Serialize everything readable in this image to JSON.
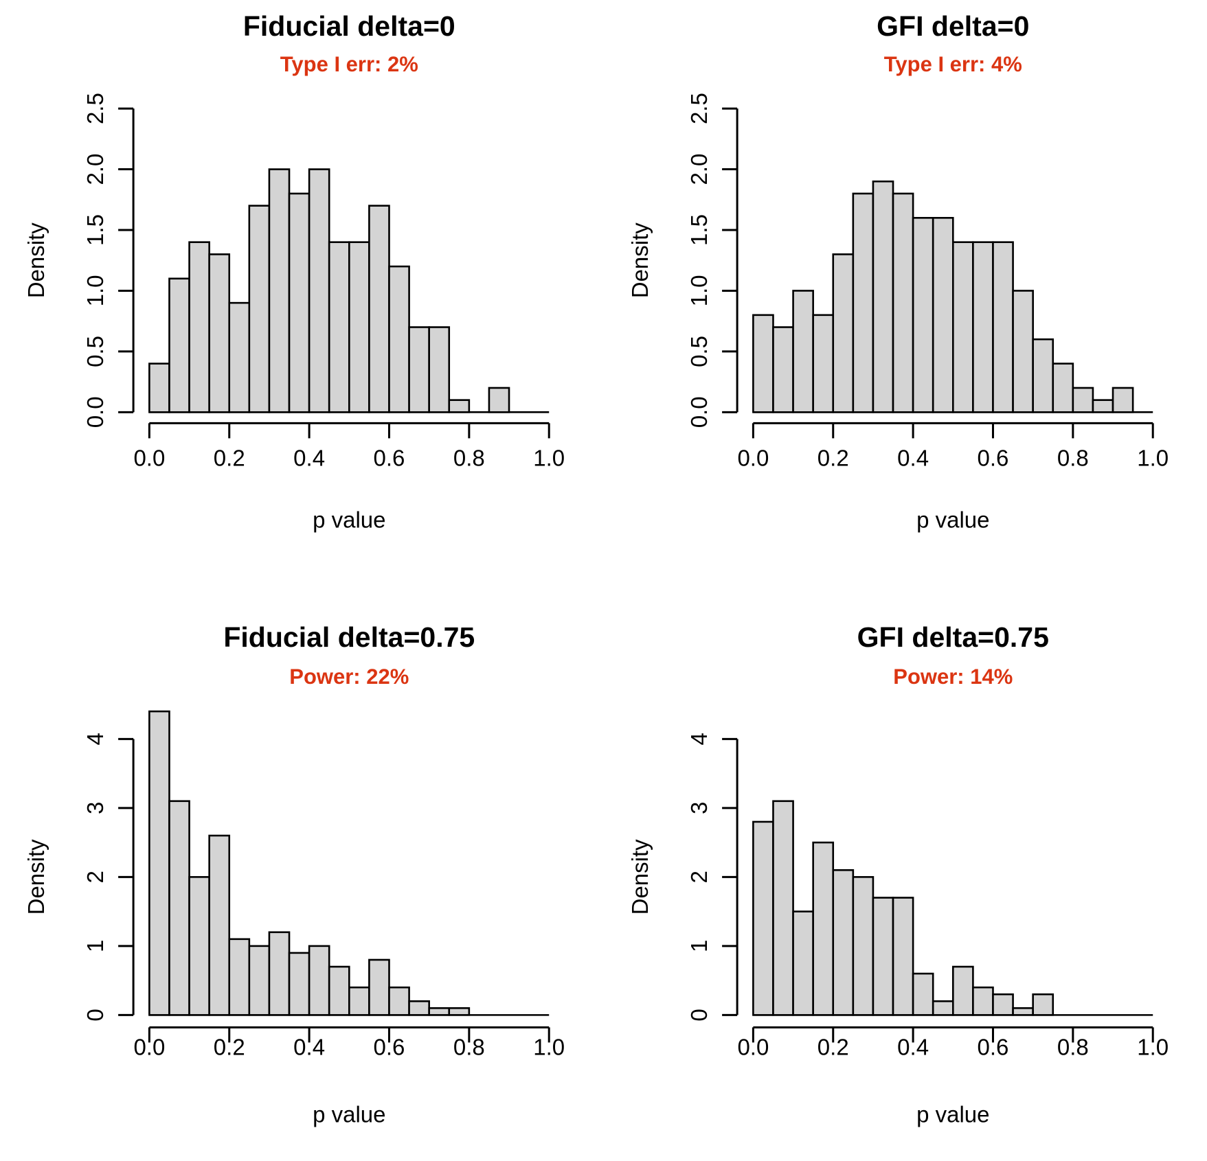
{
  "figure": {
    "background": "#FFFFFF",
    "accent_red": "#DB3512",
    "bar_fill": "#D4D4D4",
    "bar_stroke": "#000000",
    "axis_color": "#000000",
    "text_color": "#000000"
  },
  "chart_data": [
    {
      "type": "bar",
      "subtype": "histogram",
      "panel": "top-left",
      "title": "Fiducial delta=0",
      "subtitle": "Type I err: 2%",
      "subtitle_color": "#DB3512",
      "xlabel": "p value",
      "ylabel": "Density",
      "bin_start": 0,
      "bin_width": 0.05,
      "densities": [
        0.4,
        1.1,
        1.4,
        1.3,
        0.9,
        1.7,
        2.0,
        1.8,
        2.0,
        1.4,
        1.4,
        1.7,
        1.2,
        0.7,
        0.7,
        0.1,
        0.0,
        0.2,
        0.0,
        0.0
      ],
      "xlim": [
        0,
        1
      ],
      "ylim": [
        0,
        2.5
      ],
      "x_ticks": [
        0,
        0.2,
        0.4,
        0.6,
        0.8,
        1.0
      ],
      "x_tick_labels": [
        "0.0",
        "0.2",
        "0.4",
        "0.6",
        "0.8",
        "1.0"
      ],
      "y_ticks": [
        0,
        0.5,
        1.0,
        1.5,
        2.0,
        2.5
      ],
      "y_tick_labels": [
        "0.0",
        "0.5",
        "1.0",
        "1.5",
        "2.0",
        "2.5"
      ],
      "grid": false,
      "legend": null
    },
    {
      "type": "bar",
      "subtype": "histogram",
      "panel": "top-right",
      "title": "GFI delta=0",
      "subtitle": "Type I err: 4%",
      "subtitle_color": "#DB3512",
      "xlabel": "p value",
      "ylabel": "Density",
      "bin_start": 0,
      "bin_width": 0.05,
      "densities": [
        0.8,
        0.7,
        1.0,
        0.8,
        1.3,
        1.8,
        1.9,
        1.8,
        1.6,
        1.6,
        1.4,
        1.4,
        1.4,
        1.0,
        0.6,
        0.4,
        0.2,
        0.1,
        0.2,
        0.0
      ],
      "xlim": [
        0,
        1
      ],
      "ylim": [
        0,
        2.5
      ],
      "x_ticks": [
        0,
        0.2,
        0.4,
        0.6,
        0.8,
        1.0
      ],
      "x_tick_labels": [
        "0.0",
        "0.2",
        "0.4",
        "0.6",
        "0.8",
        "1.0"
      ],
      "y_ticks": [
        0,
        0.5,
        1.0,
        1.5,
        2.0,
        2.5
      ],
      "y_tick_labels": [
        "0.0",
        "0.5",
        "1.0",
        "1.5",
        "2.0",
        "2.5"
      ],
      "grid": false,
      "legend": null
    },
    {
      "type": "bar",
      "subtype": "histogram",
      "panel": "bottom-left",
      "title": "Fiducial delta=0.75",
      "subtitle": "Power: 22%",
      "subtitle_color": "#DB3512",
      "xlabel": "p value",
      "ylabel": "Density",
      "bin_start": 0,
      "bin_width": 0.05,
      "densities": [
        4.4,
        3.1,
        2.0,
        2.6,
        1.1,
        1.0,
        1.2,
        0.9,
        1.0,
        0.7,
        0.4,
        0.8,
        0.4,
        0.2,
        0.1,
        0.1,
        0.0,
        0.0,
        0.0,
        0.0
      ],
      "xlim": [
        0,
        1
      ],
      "ylim": [
        0,
        4.4
      ],
      "x_ticks": [
        0,
        0.2,
        0.4,
        0.6,
        0.8,
        1.0
      ],
      "x_tick_labels": [
        "0.0",
        "0.2",
        "0.4",
        "0.6",
        "0.8",
        "1.0"
      ],
      "y_ticks": [
        0,
        1,
        2,
        3,
        4
      ],
      "y_tick_labels": [
        "0",
        "1",
        "2",
        "3",
        "4"
      ],
      "grid": false,
      "legend": null
    },
    {
      "type": "bar",
      "subtype": "histogram",
      "panel": "bottom-right",
      "title": "GFI delta=0.75",
      "subtitle": "Power: 14%",
      "subtitle_color": "#DB3512",
      "xlabel": "p value",
      "ylabel": "Density",
      "bin_start": 0,
      "bin_width": 0.05,
      "densities": [
        2.8,
        3.1,
        1.5,
        2.5,
        2.1,
        2.0,
        1.7,
        1.7,
        0.6,
        0.2,
        0.7,
        0.4,
        0.3,
        0.1,
        0.3,
        0.0,
        0.0,
        0.0,
        0.0,
        0.0
      ],
      "xlim": [
        0,
        1
      ],
      "ylim": [
        0,
        4.4
      ],
      "x_ticks": [
        0,
        0.2,
        0.4,
        0.6,
        0.8,
        1.0
      ],
      "x_tick_labels": [
        "0.0",
        "0.2",
        "0.4",
        "0.6",
        "0.8",
        "1.0"
      ],
      "y_ticks": [
        0,
        1,
        2,
        3,
        4
      ],
      "y_tick_labels": [
        "0",
        "1",
        "2",
        "3",
        "4"
      ],
      "grid": false,
      "legend": null
    }
  ]
}
